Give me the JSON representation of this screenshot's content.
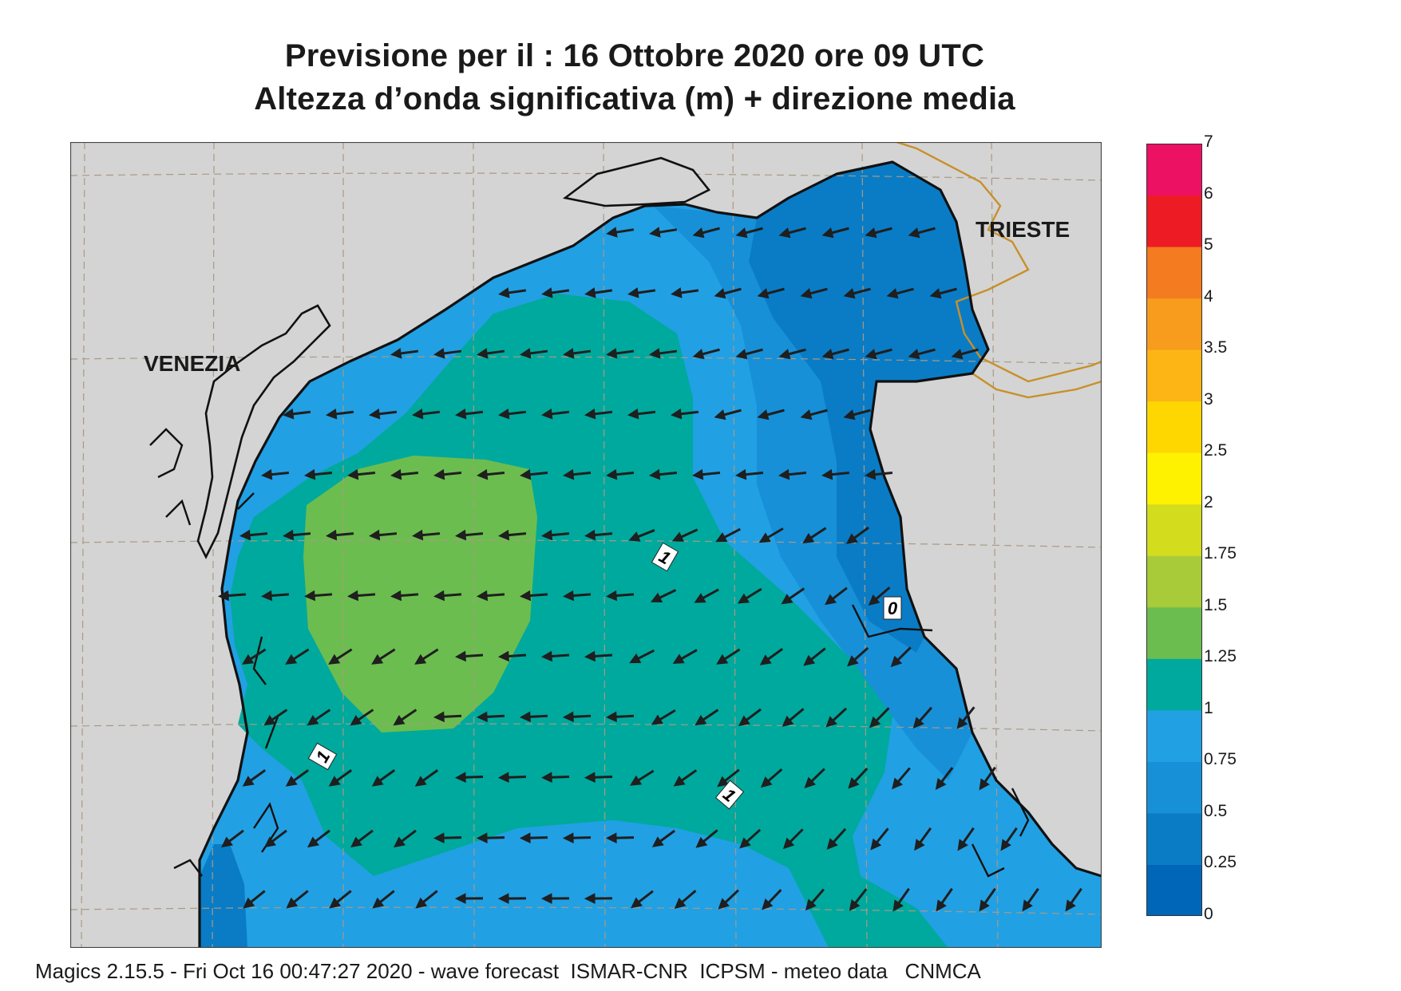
{
  "header": {
    "title_line1": "Previsione per il  :  16  Ottobre  2020   ore 09 UTC",
    "title_line2": "Altezza d’onda significativa (m) + direzione media"
  },
  "map": {
    "place_labels": {
      "venezia": "VENEZIA",
      "trieste": "TRIESTE"
    },
    "contour_labels": [
      "1",
      "1",
      "1",
      "0"
    ],
    "colors": {
      "land": "#d4d4d4",
      "coast": "#111111",
      "border": "#c8902a",
      "grid": "#a89a84",
      "arrow": "#1f1f1f"
    }
  },
  "legend": {
    "levels": [
      "0",
      "0.25",
      "0.5",
      "0.75",
      "1",
      "1.25",
      "1.5",
      "1.75",
      "2",
      "2.5",
      "3",
      "3.5",
      "4",
      "5",
      "6",
      "7"
    ],
    "colors": [
      "#0067b8",
      "#0a7cc6",
      "#1790d8",
      "#22a0e4",
      "#00a99d",
      "#6cbd4f",
      "#a8cb3a",
      "#d4dc1e",
      "#fff200",
      "#ffd700",
      "#fdb515",
      "#f79c1c",
      "#f47b20",
      "#ed1c24",
      "#ec1163"
    ]
  },
  "footer": {
    "text": "Magics 2.15.5 - Fri Oct 16 00:47:27 2020 - wave forecast  ISMAR-CNR  ICPSM - meteo data   CNMCA"
  }
}
